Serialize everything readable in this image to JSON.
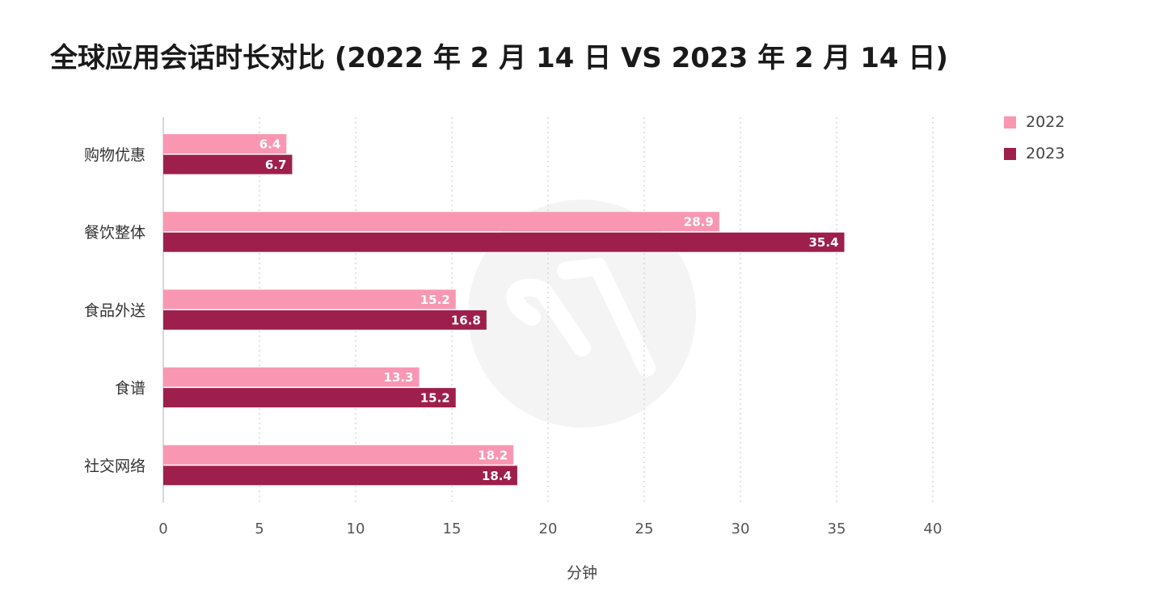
{
  "title": "全球应用会话时长对比 (2022 年 2 月 14 日 VS 2023 年 2 月 14 日)",
  "legend": [
    {
      "label": "2022",
      "color": "#f997b2"
    },
    {
      "label": "2023",
      "color": "#9e1f4b"
    }
  ],
  "chart_data": {
    "type": "bar",
    "orientation": "horizontal",
    "title": "全球应用会话时长对比 (2022 年 2 月 14 日 VS 2023 年 2 月 14 日)",
    "categories": [
      "购物优惠",
      "餐饮整体",
      "食品外送",
      "食谱",
      "社交网络"
    ],
    "series": [
      {
        "name": "2022",
        "color": "#f997b2",
        "values": [
          6.4,
          28.9,
          15.2,
          13.3,
          18.2
        ]
      },
      {
        "name": "2023",
        "color": "#9e1f4b",
        "values": [
          6.7,
          35.4,
          16.8,
          15.2,
          18.4
        ]
      }
    ],
    "xlabel": "分钟",
    "ylabel": "",
    "xlim": [
      0,
      40
    ],
    "xticks": [
      "0",
      "5",
      "10",
      "15",
      "20",
      "25",
      "30",
      "35",
      "40"
    ],
    "grid": "vertical dotted",
    "legend_position": "top-right"
  }
}
